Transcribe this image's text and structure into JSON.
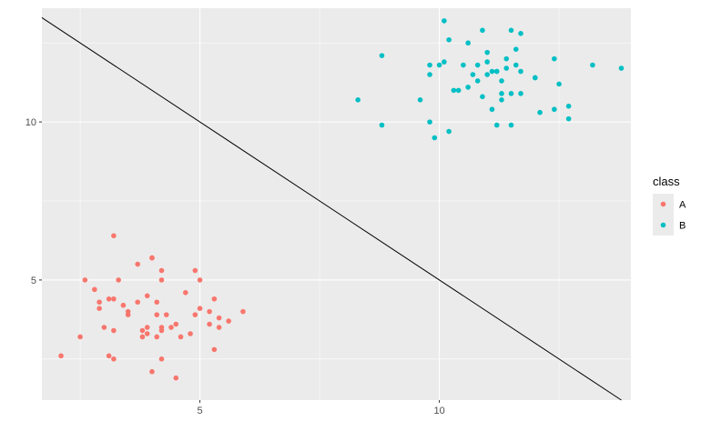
{
  "chart_data": {
    "type": "scatter",
    "title": "",
    "xlabel": "",
    "ylabel": "",
    "xlim": [
      1.7,
      14.0
    ],
    "ylim": [
      1.2,
      13.6
    ],
    "x_ticks": [
      5,
      10
    ],
    "x_tick_labels": [
      "5",
      "10"
    ],
    "y_ticks": [
      5,
      10
    ],
    "y_tick_labels": [
      "5",
      "10"
    ],
    "grid": true,
    "legend": {
      "title": "class",
      "placement": "right"
    },
    "reference_line": {
      "intercept": 15,
      "slope": -1
    },
    "series": [
      {
        "name": "A",
        "color": "#F8766D",
        "points": [
          [
            2.1,
            2.6
          ],
          [
            2.5,
            3.2
          ],
          [
            2.6,
            5.0
          ],
          [
            2.8,
            4.7
          ],
          [
            2.9,
            4.3
          ],
          [
            2.9,
            4.1
          ],
          [
            3.0,
            3.5
          ],
          [
            3.1,
            4.4
          ],
          [
            3.1,
            2.6
          ],
          [
            3.2,
            2.5
          ],
          [
            3.2,
            3.4
          ],
          [
            3.2,
            4.4
          ],
          [
            3.2,
            6.4
          ],
          [
            3.3,
            5.0
          ],
          [
            3.4,
            4.2
          ],
          [
            3.5,
            3.9
          ],
          [
            3.5,
            4.0
          ],
          [
            3.7,
            5.5
          ],
          [
            3.7,
            4.3
          ],
          [
            3.8,
            3.2
          ],
          [
            3.8,
            3.4
          ],
          [
            3.9,
            3.3
          ],
          [
            3.9,
            3.5
          ],
          [
            3.9,
            4.5
          ],
          [
            4.0,
            5.7
          ],
          [
            4.0,
            5.7
          ],
          [
            4.0,
            2.1
          ],
          [
            4.1,
            3.9
          ],
          [
            4.1,
            4.3
          ],
          [
            4.1,
            3.2
          ],
          [
            4.2,
            2.5
          ],
          [
            4.2,
            3.4
          ],
          [
            4.2,
            3.5
          ],
          [
            4.2,
            5.3
          ],
          [
            4.2,
            5.0
          ],
          [
            4.3,
            3.9
          ],
          [
            4.4,
            3.5
          ],
          [
            4.5,
            1.9
          ],
          [
            4.5,
            3.6
          ],
          [
            4.6,
            3.2
          ],
          [
            4.7,
            4.6
          ],
          [
            4.8,
            3.3
          ],
          [
            4.9,
            5.3
          ],
          [
            4.9,
            3.9
          ],
          [
            5.0,
            5.0
          ],
          [
            5.0,
            4.1
          ],
          [
            5.2,
            4.0
          ],
          [
            5.2,
            3.6
          ],
          [
            5.3,
            4.4
          ],
          [
            5.3,
            2.8
          ],
          [
            5.4,
            3.5
          ],
          [
            5.4,
            3.8
          ],
          [
            5.6,
            3.7
          ],
          [
            5.9,
            4.0
          ]
        ]
      },
      {
        "name": "B",
        "color": "#00BFC4",
        "points": [
          [
            8.3,
            10.7
          ],
          [
            8.8,
            12.1
          ],
          [
            8.8,
            9.9
          ],
          [
            9.6,
            10.7
          ],
          [
            9.8,
            11.5
          ],
          [
            9.8,
            11.8
          ],
          [
            9.8,
            10.0
          ],
          [
            9.9,
            9.5
          ],
          [
            10.0,
            11.8
          ],
          [
            10.1,
            11.9
          ],
          [
            10.1,
            13.2
          ],
          [
            10.2,
            9.7
          ],
          [
            10.2,
            12.6
          ],
          [
            10.3,
            11.0
          ],
          [
            10.4,
            11.0
          ],
          [
            10.5,
            11.8
          ],
          [
            10.6,
            12.5
          ],
          [
            10.6,
            11.1
          ],
          [
            10.7,
            11.5
          ],
          [
            10.8,
            11.8
          ],
          [
            10.8,
            11.3
          ],
          [
            10.9,
            12.9
          ],
          [
            10.9,
            10.8
          ],
          [
            11.0,
            11.9
          ],
          [
            11.0,
            11.5
          ],
          [
            11.0,
            12.2
          ],
          [
            11.1,
            11.6
          ],
          [
            11.1,
            10.4
          ],
          [
            11.2,
            11.6
          ],
          [
            11.2,
            9.9
          ],
          [
            11.2,
            11.6
          ],
          [
            11.3,
            10.9
          ],
          [
            11.3,
            11.3
          ],
          [
            11.3,
            10.7
          ],
          [
            11.4,
            12.0
          ],
          [
            11.4,
            11.7
          ],
          [
            11.5,
            9.9
          ],
          [
            11.5,
            10.9
          ],
          [
            11.5,
            12.9
          ],
          [
            11.6,
            11.8
          ],
          [
            11.6,
            12.3
          ],
          [
            11.7,
            10.9
          ],
          [
            11.7,
            11.6
          ],
          [
            11.7,
            12.8
          ],
          [
            12.0,
            11.4
          ],
          [
            12.0,
            11.4
          ],
          [
            12.1,
            10.3
          ],
          [
            12.4,
            10.4
          ],
          [
            12.4,
            12.0
          ],
          [
            12.5,
            11.2
          ],
          [
            12.7,
            10.1
          ],
          [
            12.7,
            10.5
          ],
          [
            13.2,
            11.8
          ],
          [
            13.8,
            11.7
          ]
        ]
      }
    ]
  }
}
